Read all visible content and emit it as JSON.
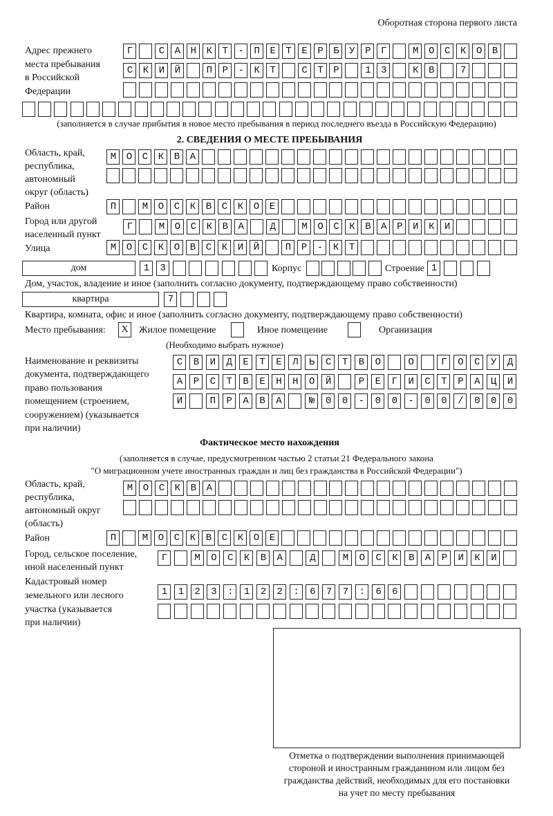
{
  "page_header": "Оборотная сторона первого листа",
  "prev_address": {
    "label": [
      "Адрес прежнего",
      "места пребывания",
      "в Российской",
      "Федерации"
    ],
    "rows": [
      "Г САНКТ-ПЕТЕРБУРГ МОСКОВ",
      "СКИЙ ПР-КТ СТР 13 КВ 7",
      "",
      ""
    ],
    "note": "(заполняется в случае прибытия в новое место пребывания в период последнего въезда в Российскую Федерацию)"
  },
  "section2": {
    "title": "2. СВЕДЕНИЯ О МЕСТЕ ПРЕБЫВАНИЯ",
    "region_label": [
      "Область, край,",
      "республика,",
      "автономный",
      "округ (область)"
    ],
    "region_rows": [
      "МОСКВА",
      ""
    ],
    "district_label": "Район",
    "district": "П МОСКВСКОЕ",
    "city_label": [
      "Город или другой",
      "населенный пункт"
    ],
    "city": "Г МОСКВА Д МОСКВАРИКИ",
    "street_label": "Улица",
    "street": "МОСКОВСКИЙ ПР-КТ",
    "house_type": "дом",
    "house": "13",
    "korpus_label": "Корпус",
    "korpus": "",
    "building_label": "Строение",
    "building": "1",
    "house_note": "Дом, участок, владение и иное (заполнить согласно документу, подтверждающему право собственности)",
    "flat_type": "квартира",
    "flat": "7",
    "flat_note": "Квартира, комната, офис и иное (заполнить согласно документу, подтверждающему право собственности)",
    "stay_label": "Место пребывания:",
    "stay_options": [
      {
        "label": "Жилое помещение",
        "mark": "Х"
      },
      {
        "label": "Иное помещение",
        "mark": ""
      },
      {
        "label": "Организация",
        "mark": ""
      }
    ],
    "stay_note": "(Необходимо выбрать нужное)",
    "doc_label": [
      "Наименование и реквизиты",
      "документа, подтверждающего",
      "право пользования",
      "помещением (строением,",
      "сооружением) (указывается",
      "при наличии)"
    ],
    "doc_rows": [
      "СВИДЕТЕЛЬСТВО О ГОСУД",
      "АРСТВЕННОЙ РЕГИСТРАЦИ",
      "И ПРАВА №00-00-00/000"
    ]
  },
  "actual": {
    "title": "Фактическое место нахождения",
    "note": [
      "(заполняется в случае, предусмотренном частью 2 статьи 21 Федерального закона",
      "\"О миграционном учете иностранных граждан и лиц без гражданства в Российской Федерации\")"
    ],
    "region_label": [
      "Область, край,",
      "республика,",
      "автономный округ",
      "(область)"
    ],
    "region_rows": [
      "МОСКВА",
      ""
    ],
    "district_label": "Район",
    "district": "П МОСКВСКОЕ",
    "city_label": [
      "Город, сельское поселение,",
      "иной населенный пункт"
    ],
    "city": "Г МОСКВА Д МОСКВАРИКИ",
    "cadastre_label": [
      "Кадастровый номер",
      "земельного или лесного",
      "участка (указывается",
      "при наличии)"
    ],
    "cadastre_rows": [
      "1123:122:677:66",
      ""
    ]
  },
  "stamp_caption": [
    "Отметка о подтверждении выполнения принимающей",
    "стороной и иностранным гражданином или лицом без",
    "гражданства действий, необходимых для его постановки",
    "на учет по месту пребывания"
  ]
}
